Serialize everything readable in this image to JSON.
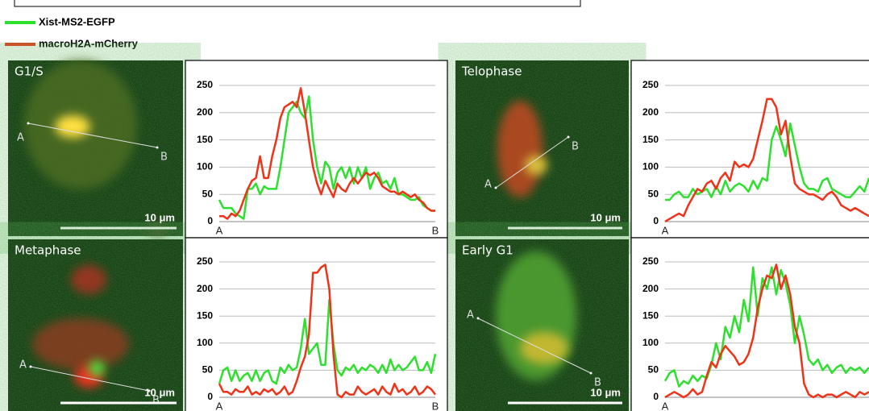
{
  "legend": [
    {
      "name": "Xist-MS2-EGFP",
      "color": "#2ee02e"
    },
    {
      "name": "macroH2A-mCherry",
      "color": "#ee3318"
    }
  ],
  "panels": [
    {
      "label": "G1/S",
      "point_a": "A",
      "point_b": "B",
      "scale": "10 μm"
    },
    {
      "label": "Telophase",
      "point_a": "A",
      "point_b": "B",
      "scale": "10 μm"
    },
    {
      "label": "Metaphase",
      "point_a": "A",
      "point_b": "B",
      "scale": "10 μm"
    },
    {
      "label": "Early G1",
      "point_a": "A",
      "point_b": "B",
      "scale": "10 μm"
    }
  ],
  "chart_data": [
    {
      "type": "line",
      "ylim": [
        0,
        250
      ],
      "yticks": [
        0,
        50,
        100,
        150,
        200,
        250
      ],
      "grid": true,
      "categories": [
        "A",
        null,
        null,
        null,
        null,
        null,
        null,
        null,
        null,
        null,
        null,
        null,
        null,
        null,
        null,
        null,
        null,
        null,
        null,
        null,
        null,
        null,
        null,
        null,
        null,
        null,
        null,
        null,
        null,
        null,
        null,
        null,
        null,
        null,
        null,
        null,
        null,
        null,
        null,
        null,
        null,
        null,
        null,
        null,
        null,
        null,
        null,
        null,
        null,
        null,
        null,
        null,
        null,
        "B"
      ],
      "series": [
        {
          "color": "#2ee02e",
          "values": [
            40,
            25,
            25,
            25,
            15,
            10,
            5,
            60,
            60,
            70,
            50,
            65,
            60,
            60,
            60,
            100,
            150,
            200,
            210,
            220,
            200,
            190,
            230,
            150,
            100,
            70,
            110,
            100,
            60,
            90,
            100,
            80,
            100,
            70,
            100,
            80,
            100,
            60,
            80,
            90,
            70,
            75,
            60,
            80,
            50,
            50,
            45,
            40,
            40,
            45,
            30,
            25,
            20,
            20
          ]
        },
        {
          "color": "#ee3318",
          "values": [
            10,
            10,
            5,
            15,
            10,
            20,
            40,
            60,
            75,
            80,
            120,
            80,
            80,
            120,
            150,
            190,
            210,
            215,
            220,
            210,
            245,
            200,
            150,
            100,
            70,
            50,
            75,
            60,
            45,
            70,
            60,
            55,
            70,
            80,
            70,
            80,
            90,
            85,
            90,
            80,
            65,
            60,
            55,
            55,
            50,
            55,
            50,
            45,
            50,
            40,
            35,
            25,
            20,
            20
          ]
        }
      ]
    },
    {
      "type": "line",
      "ylim": [
        0,
        250
      ],
      "yticks": [
        0,
        50,
        100,
        150,
        200,
        250
      ],
      "grid": true,
      "categories": [
        "A",
        null,
        null,
        null,
        null,
        null,
        null,
        null,
        null,
        null,
        null,
        null,
        null,
        null,
        null,
        null,
        null,
        null,
        null,
        null,
        null,
        null,
        null,
        null,
        null,
        null,
        null,
        null,
        null,
        null,
        null,
        null,
        null,
        null,
        null,
        null,
        null,
        null,
        null,
        null,
        null,
        null,
        null,
        null,
        null
      ],
      "series": [
        {
          "color": "#2ee02e",
          "values": [
            40,
            40,
            50,
            55,
            45,
            45,
            60,
            50,
            55,
            60,
            45,
            65,
            50,
            75,
            55,
            65,
            70,
            65,
            55,
            75,
            60,
            80,
            75,
            150,
            175,
            150,
            120,
            180,
            140,
            100,
            70,
            60,
            60,
            55,
            75,
            80,
            60,
            55,
            50,
            45,
            45,
            55,
            65,
            55,
            80
          ]
        },
        {
          "color": "#ee3318",
          "values": [
            0,
            5,
            10,
            15,
            10,
            30,
            45,
            60,
            55,
            70,
            75,
            60,
            80,
            90,
            75,
            110,
            100,
            105,
            100,
            115,
            150,
            185,
            225,
            225,
            210,
            160,
            185,
            120,
            70,
            60,
            55,
            50,
            50,
            45,
            40,
            50,
            55,
            45,
            30,
            25,
            20,
            25,
            20,
            15,
            10
          ]
        }
      ]
    },
    {
      "type": "line",
      "ylim": [
        0,
        250
      ],
      "yticks": [
        0,
        50,
        100,
        150,
        200,
        250
      ],
      "grid": true,
      "categories": [
        "A",
        null,
        null,
        null,
        null,
        null,
        null,
        null,
        null,
        null,
        null,
        null,
        null,
        null,
        null,
        null,
        null,
        null,
        null,
        null,
        null,
        null,
        null,
        null,
        null,
        null,
        null,
        null,
        null,
        null,
        null,
        null,
        null,
        null,
        null,
        null,
        null,
        null,
        null,
        null,
        null,
        null,
        null,
        null,
        null,
        null,
        null,
        null,
        null,
        null,
        null,
        null,
        null,
        "B"
      ],
      "series": [
        {
          "color": "#2ee02e",
          "values": [
            25,
            50,
            55,
            30,
            50,
            30,
            40,
            45,
            30,
            50,
            30,
            45,
            50,
            30,
            25,
            55,
            45,
            60,
            50,
            55,
            90,
            145,
            80,
            90,
            100,
            60,
            60,
            180,
            100,
            50,
            40,
            55,
            50,
            60,
            45,
            55,
            50,
            60,
            55,
            45,
            60,
            45,
            70,
            50,
            60,
            50,
            55,
            65,
            75,
            50,
            50,
            65,
            45,
            80
          ]
        },
        {
          "color": "#ee3318",
          "values": [
            25,
            10,
            10,
            5,
            15,
            10,
            10,
            20,
            5,
            10,
            5,
            15,
            10,
            15,
            5,
            10,
            20,
            5,
            10,
            30,
            55,
            75,
            115,
            230,
            230,
            240,
            245,
            200,
            80,
            5,
            0,
            10,
            5,
            5,
            20,
            10,
            5,
            10,
            15,
            5,
            20,
            10,
            5,
            25,
            10,
            15,
            5,
            10,
            20,
            5,
            10,
            20,
            15,
            5
          ]
        }
      ]
    },
    {
      "type": "line",
      "ylim": [
        0,
        250
      ],
      "yticks": [
        0,
        50,
        100,
        150,
        200,
        250
      ],
      "grid": true,
      "categories": [
        "A",
        null,
        null,
        null,
        null,
        null,
        null,
        null,
        null,
        null,
        null,
        null,
        null,
        null,
        null,
        null,
        null,
        null,
        null,
        null,
        null,
        null,
        null,
        null,
        null,
        null,
        null,
        null,
        null,
        null,
        null,
        null,
        null,
        null,
        null,
        null,
        null,
        null,
        null,
        null,
        null,
        null,
        null,
        null,
        null
      ],
      "series": [
        {
          "color": "#2ee02e",
          "values": [
            30,
            45,
            50,
            20,
            30,
            25,
            40,
            30,
            40,
            35,
            60,
            100,
            70,
            130,
            110,
            150,
            120,
            180,
            140,
            240,
            150,
            220,
            200,
            240,
            190,
            235,
            210,
            170,
            100,
            150,
            115,
            70,
            60,
            70,
            50,
            60,
            45,
            55,
            60,
            45,
            55,
            50,
            55,
            45,
            55
          ]
        },
        {
          "color": "#ee3318",
          "values": [
            0,
            5,
            10,
            5,
            0,
            5,
            15,
            5,
            10,
            40,
            65,
            55,
            80,
            95,
            85,
            75,
            60,
            65,
            80,
            110,
            165,
            200,
            225,
            220,
            245,
            200,
            225,
            190,
            130,
            100,
            25,
            5,
            0,
            5,
            0,
            5,
            5,
            0,
            5,
            10,
            5,
            0,
            10,
            5,
            10
          ]
        }
      ]
    }
  ]
}
